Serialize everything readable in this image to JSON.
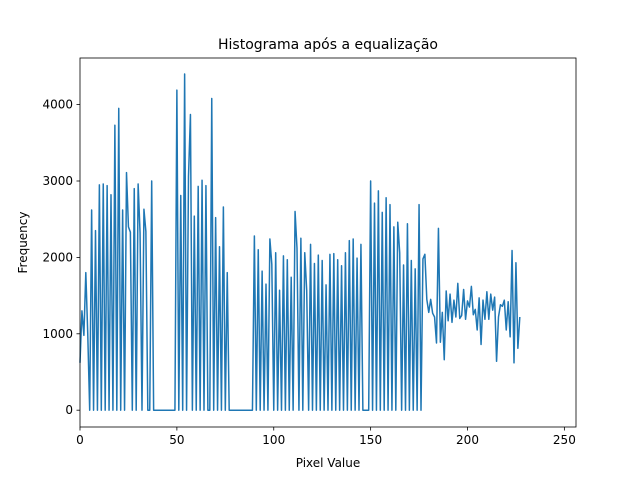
{
  "chart_data": {
    "type": "line",
    "title": "Histograma após a equalização",
    "xlabel": "Pixel Value",
    "ylabel": "Frequency",
    "xlim": [
      0,
      256
    ],
    "ylim": [
      -220,
      4610
    ],
    "xticks": [
      0,
      50,
      100,
      150,
      200,
      250
    ],
    "yticks": [
      0,
      1000,
      2000,
      3000,
      4000
    ],
    "grid": false,
    "legend": "none",
    "series": [
      {
        "color": "#1f77b4",
        "values": [
          620,
          1300,
          980,
          1800,
          1000,
          0,
          2620,
          0,
          2350,
          0,
          2950,
          0,
          2960,
          0,
          2940,
          0,
          2820,
          0,
          3730,
          0,
          3950,
          0,
          2620,
          0,
          3110,
          2400,
          2330,
          0,
          2900,
          0,
          2960,
          2320,
          0,
          2630,
          2340,
          0,
          0,
          3000,
          0,
          0,
          0,
          0,
          0,
          0,
          0,
          0,
          0,
          0,
          0,
          0,
          4190,
          0,
          2810,
          0,
          4400,
          0,
          3060,
          3870,
          0,
          2540,
          0,
          2930,
          0,
          3010,
          0,
          2940,
          0,
          0,
          4080,
          0,
          2520,
          0,
          2140,
          0,
          2660,
          0,
          1800,
          0,
          0,
          0,
          0,
          0,
          0,
          0,
          0,
          0,
          0,
          0,
          0,
          0,
          2280,
          0,
          2100,
          0,
          1820,
          0,
          1650,
          0,
          2240,
          1910,
          0,
          2060,
          0,
          1570,
          0,
          2020,
          0,
          1970,
          0,
          1740,
          0,
          2600,
          2120,
          0,
          2250,
          0,
          2060,
          1570,
          0,
          2170,
          0,
          1920,
          0,
          2030,
          0,
          1960,
          0,
          1640,
          0,
          2040,
          0,
          2050,
          0,
          1970,
          0,
          1890,
          0,
          2060,
          0,
          2220,
          0,
          2240,
          0,
          1990,
          0,
          2170,
          0,
          0,
          0,
          0,
          3000,
          0,
          2710,
          0,
          2870,
          0,
          2590,
          0,
          2780,
          0,
          2690,
          0,
          2400,
          0,
          2460,
          2060,
          0,
          1900,
          0,
          2440,
          0,
          1960,
          0,
          1850,
          0,
          2690,
          0,
          1980,
          2040,
          1450,
          1280,
          1450,
          1270,
          1220,
          880,
          2380,
          890,
          1280,
          660,
          1560,
          1170,
          1520,
          1150,
          1440,
          1220,
          1660,
          1200,
          1240,
          1580,
          1190,
          1430,
          1350,
          1620,
          1250,
          1320,
          1050,
          1470,
          860,
          1440,
          1190,
          1550,
          1190,
          1520,
          1310,
          1480,
          640,
          1220,
          1380,
          1360,
          1440,
          1050,
          1420,
          960,
          2090,
          620,
          1930,
          810,
          1220
        ]
      }
    ]
  }
}
